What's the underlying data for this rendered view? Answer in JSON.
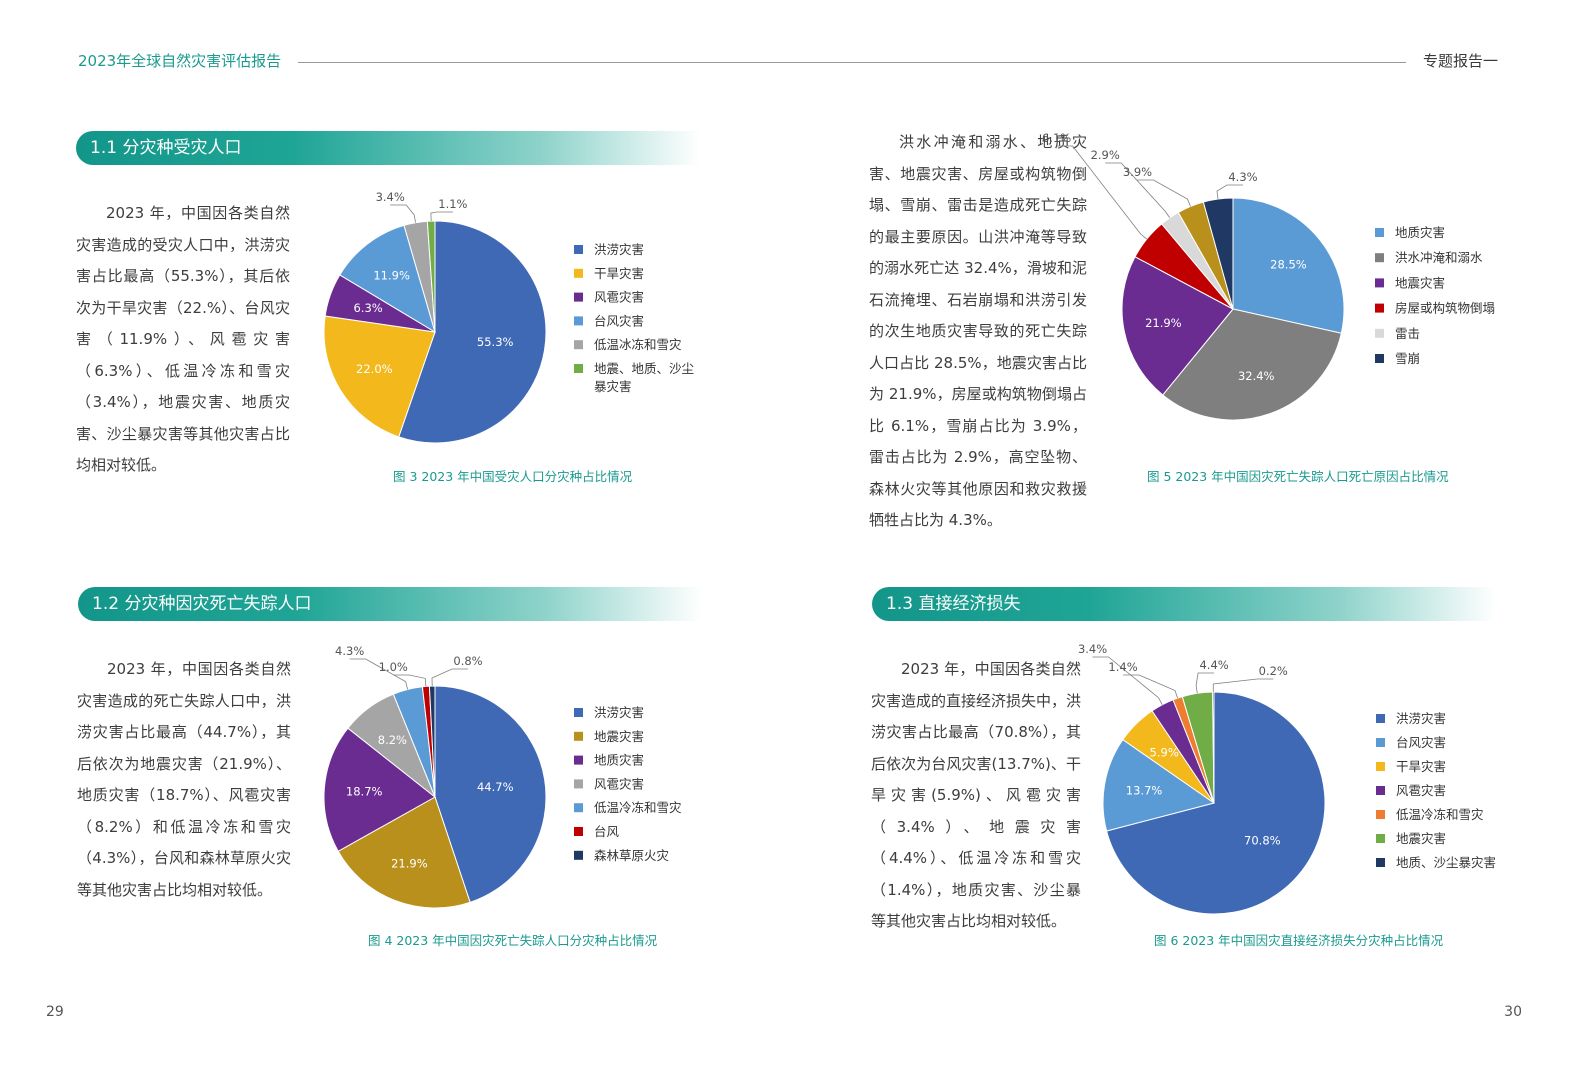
{
  "header": {
    "title": "2023年全球自然灾害评估报告",
    "right": "专题报告一"
  },
  "page_numbers": {
    "left": "29",
    "right": "30"
  },
  "sections": {
    "s1": "1.1 分灾种受灾人口",
    "s2": "1.2 分灾种因灾死亡失踪人口",
    "s3": "1.3 直接经济损失"
  },
  "paragraphs": {
    "p1": "2023 年，中国因各类自然灾害造成的受灾人口中，洪涝灾害占比最高（55.3%），其后依次为干旱灾害（22.%）、台风灾害（11.9%）、风雹灾害（6.3%）、低温冷冻和雪灾（3.4%），地震灾害、地质灾害、沙尘暴灾害等其他灾害占比均相对较低。",
    "p2": "2023 年，中国因各类自然灾害造成的死亡失踪人口中，洪涝灾害占比最高（44.7%），其后依次为地震灾害（21.9%）、地质灾害（18.7%）、风雹灾害（8.2%）和低温冷冻和雪灾（4.3%），台风和森林草原火灾等其他灾害占比均相对较低。",
    "p3": "洪水冲淹和溺水、地质灾害、地震灾害、房屋或构筑物倒塌、雪崩、雷击是造成死亡失踪的最主要原因。山洪冲淹等导致的溺水死亡达 32.4%，滑坡和泥石流掩埋、石岩崩塌和洪涝引发的次生地质灾害导致的死亡失踪人口占比 28.5%，地震灾害占比为 21.9%，房屋或构筑物倒塌占比 6.1%，雪崩占比为 3.9%，雷击占比为 2.9%，高空坠物、森林火灾等其他原因和救灾救援牺牲占比为 4.3%。",
    "p4": "2023 年，中国因各类自然灾害造成的直接经济损失中，洪涝灾害占比最高（70.8%），其后依次为台风灾害(13.7%)、干旱灾害(5.9%)、风雹灾害（3.4%）、地震灾害（4.4%）、低温冷冻和雪灾（1.4%），地质灾害、沙尘暴等其他灾害占比均相对较低。"
  },
  "chart_data": [
    {
      "id": "fig3",
      "type": "pie",
      "title": "图 3  2023 年中国受灾人口分灾种占比情况",
      "slices": [
        {
          "label": "洪涝灾害",
          "value": 55.3,
          "color": "#3f68b5",
          "text": "55.3%"
        },
        {
          "label": "干旱灾害",
          "value": 22.0,
          "color": "#f2b81c",
          "text": "22.0%"
        },
        {
          "label": "风雹灾害",
          "value": 6.3,
          "color": "#6a2c91",
          "text": "6.3%"
        },
        {
          "label": "台风灾害",
          "value": 11.9,
          "color": "#5b9bd5",
          "text": "11.9%"
        },
        {
          "label": "低温冰冻和雪灾",
          "value": 3.4,
          "color": "#a5a5a5",
          "text": "3.4%"
        },
        {
          "label": "地震、地质、沙尘暴灾害",
          "value": 1.1,
          "color": "#70ad47",
          "text": "1.1%"
        }
      ]
    },
    {
      "id": "fig4",
      "type": "pie",
      "title": "图 4  2023 年中国因灾死亡失踪人口分灾种占比情况",
      "slices": [
        {
          "label": "洪涝灾害",
          "value": 44.7,
          "color": "#3f68b5",
          "text": "44.7%"
        },
        {
          "label": "地震灾害",
          "value": 21.9,
          "color": "#b8901b",
          "text": "21.9%"
        },
        {
          "label": "地质灾害",
          "value": 18.7,
          "color": "#6a2c91",
          "text": "18.7%"
        },
        {
          "label": "风雹灾害",
          "value": 8.2,
          "color": "#a5a5a5",
          "text": "8.2%"
        },
        {
          "label": "低温冷冻和雪灾",
          "value": 4.3,
          "color": "#5b9bd5",
          "text": "4.3%"
        },
        {
          "label": "台风",
          "value": 1.0,
          "color": "#c00000",
          "text": "1.0%"
        },
        {
          "label": "森林草原火灾",
          "value": 0.8,
          "color": "#1f3864",
          "text": "0.8%"
        }
      ]
    },
    {
      "id": "fig5",
      "type": "pie",
      "title": "图 5  2023 年中国因灾死亡失踪人口死亡原因占比情况",
      "slices": [
        {
          "label": "地质灾害",
          "value": 28.5,
          "color": "#5b9bd5",
          "text": "28.5%"
        },
        {
          "label": "洪水冲淹和溺水",
          "value": 32.4,
          "color": "#7f7f7f",
          "text": "32.4%"
        },
        {
          "label": "地震灾害",
          "value": 21.9,
          "color": "#6a2c91",
          "text": "21.9%"
        },
        {
          "label": "房屋或构筑物倒塌",
          "value": 6.1,
          "color": "#c00000",
          "text": "6.1%"
        },
        {
          "label": "雷击",
          "value": 2.9,
          "color": "#d9d9d9",
          "text": "2.9%"
        },
        {
          "label": "",
          "value": 3.9,
          "color": "#b8901b",
          "text": "3.9%"
        },
        {
          "label": "雪崩",
          "value": 4.3,
          "color": "#1f3864",
          "text": "4.3%"
        }
      ]
    },
    {
      "id": "fig6",
      "type": "pie",
      "title": "图 6  2023 年中国因灾直接经济损失分灾种占比情况",
      "slices": [
        {
          "label": "洪涝灾害",
          "value": 70.8,
          "color": "#3f68b5",
          "text": "70.8%"
        },
        {
          "label": "台风灾害",
          "value": 13.7,
          "color": "#5b9bd5",
          "text": "13.7%"
        },
        {
          "label": "干旱灾害",
          "value": 5.9,
          "color": "#f2b81c",
          "text": "5.9%"
        },
        {
          "label": "风雹灾害",
          "value": 3.4,
          "color": "#6a2c91",
          "text": "3.4%"
        },
        {
          "label": "低温冷冻和雪灾",
          "value": 1.4,
          "color": "#ed7d31",
          "text": "1.4%"
        },
        {
          "label": "地震灾害",
          "value": 4.4,
          "color": "#70ad47",
          "text": "4.4%"
        },
        {
          "label": "地质、沙尘暴灾害",
          "value": 0.2,
          "color": "#1f3864",
          "text": "0.2%"
        }
      ]
    }
  ]
}
